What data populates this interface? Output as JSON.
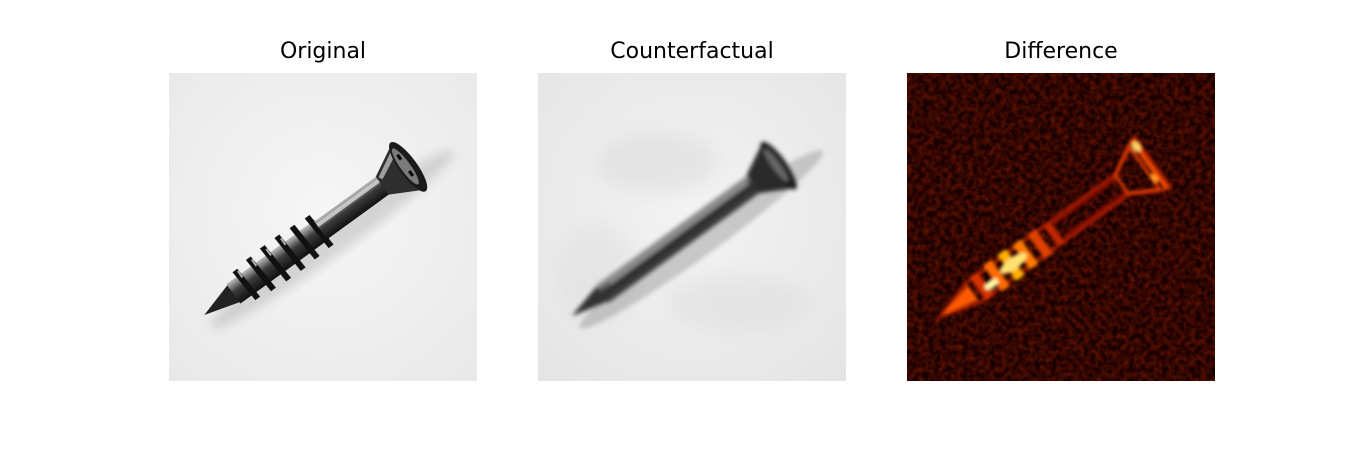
{
  "figure": {
    "panels": [
      {
        "title": "Original",
        "image_subject": "screw-grayscale",
        "background": "#efefef"
      },
      {
        "title": "Counterfactual",
        "image_subject": "screw-grayscale-blurred",
        "background": "#ececec"
      },
      {
        "title": "Difference",
        "image_subject": "screw-heatmap",
        "background": "#1a0000"
      }
    ]
  }
}
